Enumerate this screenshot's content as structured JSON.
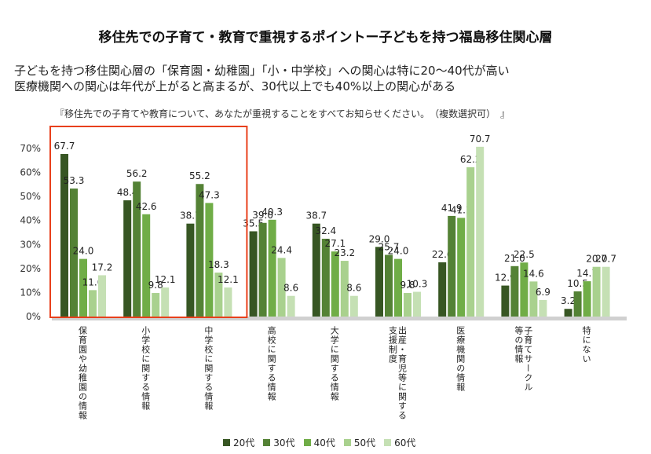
{
  "header": {
    "title": "移住先での子育て・教育で重視するポイントー子どもを持つ福島移住関心層",
    "subtitle_line1": "子どもを持つ移住関心層の「保育園・幼稚園」「小・中学校」への関心は特に20～40代が高い",
    "subtitle_line2": "医療機関への関心は年代が上がると高まるが、30代以上でも40%以上の関心がある",
    "question": "『移住先での子育てや教育について、あなたが重視することをすべてお知らせください。　（複数選択可）　』"
  },
  "chart_data": {
    "type": "bar",
    "ylim": [
      0,
      70
    ],
    "yticks": [
      "0%",
      "10%",
      "20%",
      "30%",
      "40%",
      "50%",
      "60%",
      "70%"
    ],
    "categories": [
      {
        "line1": "保育園や幼稚園の情報",
        "line2": ""
      },
      {
        "line1": "小学校に関する情報",
        "line2": ""
      },
      {
        "line1": "中学校に関する情報",
        "line2": ""
      },
      {
        "line1": "高校に関する情報",
        "line2": ""
      },
      {
        "line1": "大学に関する情報",
        "line2": ""
      },
      {
        "line1": "出産・育児等に関する",
        "line2": "支援制度"
      },
      {
        "line1": "医療機関の情報",
        "line2": ""
      },
      {
        "line1": "子育てサークル",
        "line2": "等の情報"
      },
      {
        "line1": "特にない",
        "line2": ""
      }
    ],
    "series": [
      {
        "name": "20代",
        "color": "#375623",
        "values": [
          67.7,
          48.4,
          38.7,
          35.5,
          38.7,
          29.0,
          22.6,
          12.9,
          3.2
        ]
      },
      {
        "name": "30代",
        "color": "#548235",
        "values": [
          53.3,
          56.2,
          55.2,
          39.0,
          32.4,
          25.7,
          41.9,
          21.0,
          10.5
        ]
      },
      {
        "name": "40代",
        "color": "#70AD47",
        "values": [
          24.0,
          42.6,
          47.3,
          40.3,
          27.1,
          24.0,
          41.1,
          22.5,
          14.7
        ]
      },
      {
        "name": "50代",
        "color": "#A9D18E",
        "values": [
          11.0,
          9.8,
          18.3,
          24.4,
          23.2,
          9.8,
          62.2,
          14.6,
          20.7
        ]
      },
      {
        "name": "60代",
        "color": "#C5E0B4",
        "values": [
          17.2,
          12.1,
          12.1,
          8.6,
          8.6,
          10.3,
          70.7,
          6.9,
          20.7
        ]
      }
    ],
    "value_labels": [
      [
        "67.7",
        "48.4",
        "38.7",
        "35.5",
        "38.7",
        "29.0",
        "22.6",
        "12.9",
        "3.2"
      ],
      [
        "53.3",
        "56.2",
        "55.2",
        "39.0",
        "32.4",
        "25.7",
        "41.9",
        "21.0",
        "10.5"
      ],
      [
        "24.0",
        "42.6",
        "47.3",
        "40.3",
        "27.1",
        "24.0",
        "41.1",
        "22.5",
        "14.7"
      ],
      [
        "11.0",
        "9.8",
        "18.3",
        "24.4",
        "23.2",
        "9.8",
        "62.2",
        "14.6",
        "20.7"
      ],
      [
        "17.2",
        "12.1",
        "12.1",
        "8.6",
        "8.6",
        "10.3",
        "70.7",
        "6.9",
        "20.7"
      ]
    ],
    "highlight": {
      "from_category": 0,
      "to_category": 2,
      "color": "#E8401C"
    },
    "legend_position": "bottom",
    "grid": false
  }
}
